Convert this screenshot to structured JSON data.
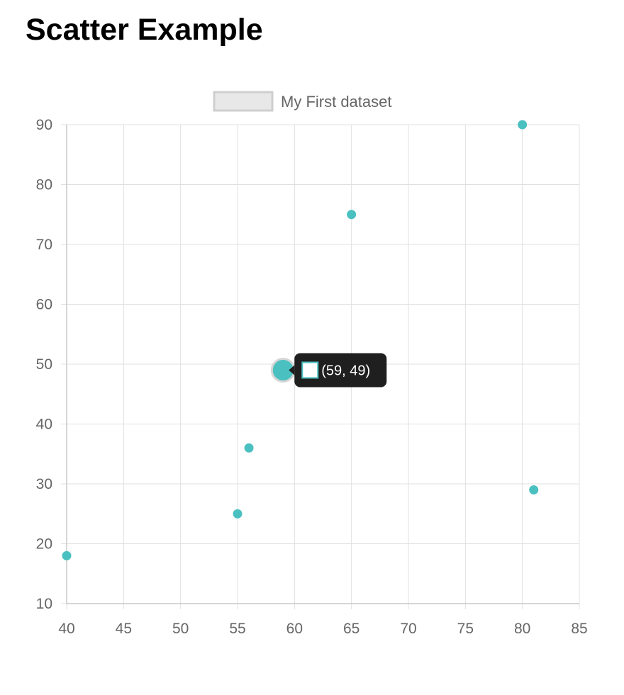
{
  "page": {
    "title": "Scatter Example"
  },
  "colors": {
    "point_fill": "#4bc0c0",
    "grid": "#e0e0e0",
    "axis_line": "#c8c8c8",
    "tick_text": "#666666",
    "legend_box_fill": "#e8e8e8",
    "legend_box_stroke": "#cfcfcf",
    "tooltip_bg": "#1f1f1f",
    "tooltip_text": "#ffffff"
  },
  "chart_data": {
    "type": "scatter",
    "legend_position": "top",
    "grid": true,
    "xlim": [
      40,
      85
    ],
    "ylim": [
      10,
      90
    ],
    "x_ticks": [
      40,
      45,
      50,
      55,
      60,
      65,
      70,
      75,
      80,
      85
    ],
    "y_ticks": [
      10,
      20,
      30,
      40,
      50,
      60,
      70,
      80,
      90
    ],
    "series": [
      {
        "name": "My First dataset",
        "points": [
          {
            "x": 65,
            "y": 75
          },
          {
            "x": 59,
            "y": 49
          },
          {
            "x": 80,
            "y": 90
          },
          {
            "x": 81,
            "y": 29
          },
          {
            "x": 56,
            "y": 36
          },
          {
            "x": 55,
            "y": 25
          },
          {
            "x": 40,
            "y": 18
          }
        ]
      }
    ],
    "tooltip": {
      "point_index": 1,
      "label": "(59, 49)"
    }
  }
}
